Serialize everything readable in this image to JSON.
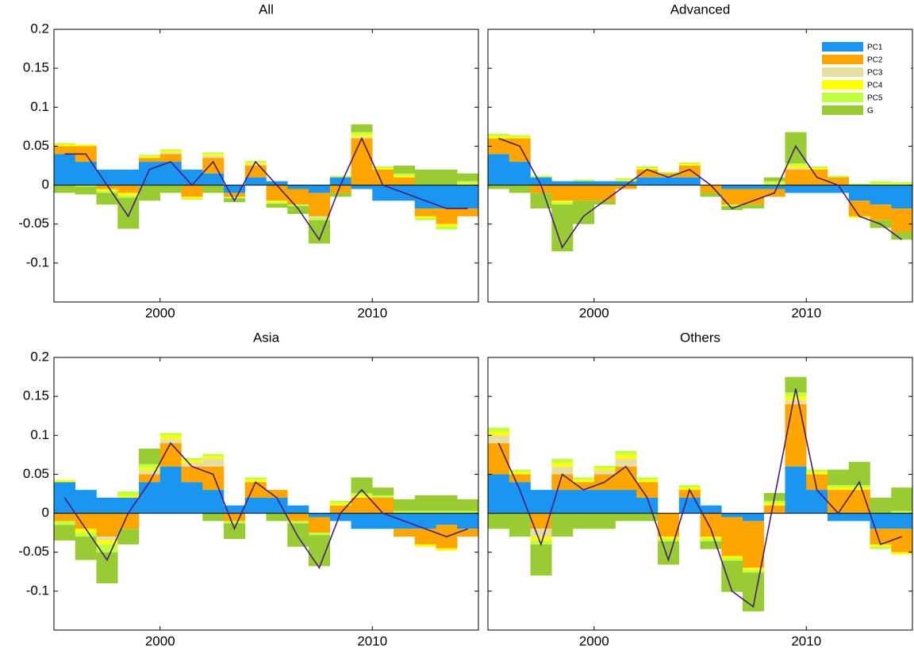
{
  "chart_data": [
    {
      "type": "bar",
      "title": "All",
      "xlim": [
        1995,
        2015
      ],
      "xticks": [
        2000,
        2010
      ],
      "ylim": [
        -0.15,
        0.2
      ],
      "yticks": [
        -0.1,
        -0.05,
        0,
        0.05,
        0.1,
        0.15,
        0.2
      ],
      "show_ytick_labels": true,
      "x": [
        1995.5,
        1996.5,
        1997.5,
        1998.5,
        1999.5,
        2000.5,
        2001.5,
        2002.5,
        2003.5,
        2004.5,
        2005.5,
        2006.5,
        2007.5,
        2008.5,
        2009.5,
        2010.5,
        2011.5,
        2012.5,
        2013.5,
        2014.5
      ],
      "series": [
        {
          "color": "#1a96f0",
          "values": [
            0.04,
            0.03,
            0.02,
            0.02,
            0.03,
            0.03,
            0.02,
            0.015,
            -0.01,
            0.01,
            0.005,
            -0.005,
            -0.01,
            0.01,
            -0.005,
            -0.02,
            -0.02,
            -0.03,
            -0.03,
            -0.03
          ]
        },
        {
          "color": "#ffa500",
          "values": [
            0.01,
            0.02,
            -0.005,
            -0.01,
            0.005,
            0.01,
            -0.015,
            0.02,
            -0.005,
            0.015,
            -0.02,
            -0.02,
            -0.03,
            -0.01,
            0.06,
            0.02,
            0.01,
            -0.01,
            -0.02,
            -0.01
          ]
        },
        {
          "color": "#e6e0a0",
          "values": [
            0,
            0,
            0,
            0,
            0,
            0.002,
            0,
            0.003,
            0,
            0.002,
            0,
            0,
            -0.002,
            0,
            0.002,
            0,
            0,
            0,
            0,
            0
          ]
        },
        {
          "color": "#ffff00",
          "values": [
            0.002,
            0.002,
            -0.002,
            -0.003,
            0.002,
            0.002,
            -0.002,
            0.002,
            0,
            0.002,
            -0.002,
            0,
            0,
            0,
            0.003,
            0.002,
            0.002,
            -0.002,
            -0.003,
            0.002
          ]
        },
        {
          "color": "#bfff3f",
          "values": [
            0.002,
            -0.002,
            -0.003,
            -0.003,
            0.002,
            0.002,
            -0.002,
            0.002,
            -0.002,
            0.002,
            -0.002,
            -0.002,
            -0.003,
            0.002,
            0.003,
            0.002,
            0.003,
            -0.003,
            -0.004,
            0.003
          ]
        },
        {
          "color": "#99cc33",
          "values": [
            -0.01,
            -0.01,
            -0.015,
            -0.04,
            -0.02,
            -0.01,
            0,
            -0.01,
            -0.005,
            0,
            -0.005,
            -0.01,
            -0.03,
            -0.005,
            0.01,
            0,
            0.01,
            0.02,
            0.02,
            0.01
          ]
        }
      ],
      "line": {
        "color": "#4b1a80",
        "values": [
          0.04,
          0.04,
          0.0,
          -0.04,
          0.02,
          0.03,
          0.0,
          0.03,
          -0.02,
          0.03,
          0.0,
          -0.03,
          -0.07,
          0.0,
          0.06,
          0.0,
          -0.01,
          -0.02,
          -0.03,
          -0.03
        ]
      }
    },
    {
      "type": "bar",
      "title": "Advanced",
      "xlim": [
        1995,
        2015
      ],
      "xticks": [
        2000,
        2010
      ],
      "ylim": [
        -0.15,
        0.2
      ],
      "yticks": [
        -0.1,
        -0.05,
        0,
        0.05,
        0.1,
        0.15,
        0.2
      ],
      "show_ytick_labels": false,
      "legend": "upper right",
      "x": [
        1995.5,
        1996.5,
        1997.5,
        1998.5,
        1999.5,
        2000.5,
        2001.5,
        2002.5,
        2003.5,
        2004.5,
        2005.5,
        2006.5,
        2007.5,
        2008.5,
        2009.5,
        2010.5,
        2011.5,
        2012.5,
        2013.5,
        2014.5
      ],
      "series": [
        {
          "name": "PC1",
          "color": "#1a96f0",
          "values": [
            0.04,
            0.03,
            0.01,
            0.005,
            0.005,
            0.005,
            0.005,
            0.01,
            0.01,
            0.01,
            0,
            -0.005,
            -0.005,
            -0.005,
            -0.01,
            -0.01,
            -0.01,
            -0.02,
            -0.025,
            -0.03
          ]
        },
        {
          "name": "PC2",
          "color": "#ffa500",
          "values": [
            0.02,
            0.03,
            -0.01,
            -0.02,
            -0.02,
            -0.02,
            -0.005,
            0.01,
            0.005,
            0.015,
            -0.01,
            -0.02,
            -0.02,
            -0.01,
            0.02,
            0.02,
            0.01,
            -0.02,
            -0.02,
            -0.03
          ]
        },
        {
          "name": "PC3",
          "color": "#e6e0a0",
          "values": [
            0,
            0,
            0,
            0,
            0,
            0,
            0,
            0,
            0,
            0,
            0,
            0,
            0,
            0,
            0.002,
            0,
            0,
            0,
            0,
            0
          ]
        },
        {
          "name": "PC4",
          "color": "#ffff00",
          "values": [
            0.003,
            0.002,
            0,
            -0.002,
            0,
            0,
            0.002,
            0.002,
            0,
            0.002,
            0,
            0,
            0,
            0.002,
            0.003,
            0.002,
            0,
            -0.002,
            0.002,
            0.002
          ]
        },
        {
          "name": "PC5",
          "color": "#bfff3f",
          "values": [
            0.003,
            0.002,
            0.002,
            -0.003,
            0.002,
            0,
            0.002,
            0.002,
            0.002,
            0.002,
            0,
            -0.002,
            0,
            0.003,
            0.003,
            0.002,
            0.002,
            0.002,
            0.003,
            0.002
          ]
        },
        {
          "name": "G",
          "color": "#99cc33",
          "values": [
            -0.005,
            -0.01,
            -0.02,
            -0.06,
            -0.03,
            -0.005,
            0,
            0,
            0,
            0,
            -0.005,
            -0.005,
            -0.005,
            0.005,
            0.04,
            0,
            0,
            0,
            -0.01,
            -0.01
          ]
        }
      ],
      "line": {
        "color": "#4b1a80",
        "values": [
          0.06,
          0.05,
          0.0,
          -0.08,
          -0.04,
          -0.02,
          0.0,
          0.02,
          0.01,
          0.02,
          0.0,
          -0.03,
          -0.02,
          -0.01,
          0.05,
          0.01,
          0.0,
          -0.04,
          -0.05,
          -0.07
        ]
      }
    },
    {
      "type": "bar",
      "title": "Asia",
      "xlim": [
        1995,
        2015
      ],
      "xticks": [
        2000,
        2010
      ],
      "ylim": [
        -0.15,
        0.2
      ],
      "yticks": [
        -0.1,
        -0.05,
        0,
        0.05,
        0.1,
        0.15,
        0.2
      ],
      "show_ytick_labels": true,
      "x": [
        1995.5,
        1996.5,
        1997.5,
        1998.5,
        1999.5,
        2000.5,
        2001.5,
        2002.5,
        2003.5,
        2004.5,
        2005.5,
        2006.5,
        2007.5,
        2008.5,
        2009.5,
        2010.5,
        2011.5,
        2012.5,
        2013.5,
        2014.5
      ],
      "series": [
        {
          "color": "#1a96f0",
          "values": [
            0.04,
            0.03,
            0.02,
            0.02,
            0.04,
            0.06,
            0.04,
            0.03,
            0.01,
            0.02,
            0.02,
            0.01,
            -0.005,
            -0.01,
            -0.02,
            -0.02,
            -0.02,
            -0.02,
            -0.015,
            -0.02
          ]
        },
        {
          "color": "#ffa500",
          "values": [
            -0.01,
            -0.02,
            -0.03,
            -0.02,
            0.01,
            0.03,
            0.02,
            0.03,
            -0.01,
            0.02,
            0.01,
            -0.01,
            -0.02,
            0.01,
            0.02,
            0.02,
            -0.01,
            -0.02,
            -0.03,
            -0.01
          ]
        },
        {
          "color": "#e6e0a0",
          "values": [
            0,
            0,
            -0.005,
            0,
            0.005,
            0.005,
            0.005,
            0.01,
            0,
            0,
            0,
            0,
            0,
            0,
            0,
            0,
            0,
            0,
            0,
            0
          ]
        },
        {
          "color": "#ffff00",
          "values": [
            0.003,
            -0.005,
            -0.005,
            0.003,
            0.003,
            0.005,
            0.003,
            0.003,
            0,
            0.003,
            0,
            0,
            0,
            0.003,
            0.003,
            0,
            0,
            -0.003,
            -0.003,
            0
          ]
        },
        {
          "color": "#bfff3f",
          "values": [
            -0.005,
            -0.005,
            -0.01,
            0.005,
            0.005,
            0.003,
            0.003,
            0.003,
            -0.003,
            0.003,
            0,
            -0.003,
            -0.003,
            0.003,
            0.003,
            0.003,
            0.003,
            0.003,
            0.003,
            0.003
          ]
        },
        {
          "color": "#99cc33",
          "values": [
            -0.02,
            -0.03,
            -0.04,
            -0.02,
            0.02,
            0,
            0,
            -0.01,
            -0.02,
            0,
            -0.01,
            -0.03,
            -0.04,
            0,
            0.02,
            0.01,
            0.015,
            0.02,
            0.02,
            0.015
          ]
        }
      ],
      "line": {
        "color": "#4b1a80",
        "values": [
          0.02,
          -0.02,
          -0.06,
          0.0,
          0.04,
          0.09,
          0.06,
          0.05,
          -0.02,
          0.04,
          0.02,
          -0.03,
          -0.07,
          0.0,
          0.03,
          0.0,
          -0.01,
          -0.02,
          -0.03,
          -0.02
        ]
      }
    },
    {
      "type": "bar",
      "title": "Others",
      "xlim": [
        1995,
        2015
      ],
      "xticks": [
        2000,
        2010
      ],
      "ylim": [
        -0.15,
        0.2
      ],
      "yticks": [
        -0.1,
        -0.05,
        0,
        0.05,
        0.1,
        0.15,
        0.2
      ],
      "show_ytick_labels": false,
      "x": [
        1995.5,
        1996.5,
        1997.5,
        1998.5,
        1999.5,
        2000.5,
        2001.5,
        2002.5,
        2003.5,
        2004.5,
        2005.5,
        2006.5,
        2007.5,
        2008.5,
        2009.5,
        2010.5,
        2011.5,
        2012.5,
        2013.5,
        2014.5
      ],
      "series": [
        {
          "color": "#1a96f0",
          "values": [
            0.05,
            0.04,
            0.03,
            0.03,
            0.03,
            0.03,
            0.03,
            0.02,
            0,
            0.02,
            0.01,
            -0.005,
            -0.01,
            0,
            0.06,
            0.03,
            -0.01,
            -0.01,
            -0.02,
            -0.02
          ]
        },
        {
          "color": "#ffa500",
          "values": [
            0.04,
            0.01,
            -0.02,
            0.02,
            0.01,
            0.02,
            0.03,
            0.02,
            -0.03,
            0.01,
            -0.03,
            -0.05,
            -0.06,
            0.01,
            0.08,
            0.02,
            0.03,
            0.03,
            -0.02,
            -0.03
          ]
        },
        {
          "color": "#e6e0a0",
          "values": [
            0.01,
            0,
            -0.01,
            0.01,
            0,
            0.005,
            0.01,
            0,
            0,
            0,
            0,
            0,
            0,
            0,
            0.005,
            0,
            0,
            0,
            0,
            0
          ]
        },
        {
          "color": "#ffff00",
          "values": [
            0.005,
            0.003,
            -0.005,
            0.005,
            0.003,
            0.003,
            0.005,
            0.003,
            -0.003,
            0.003,
            -0.003,
            -0.003,
            -0.003,
            0.003,
            0.005,
            0.003,
            0.003,
            0.003,
            -0.003,
            -0.003
          ]
        },
        {
          "color": "#bfff3f",
          "values": [
            0.005,
            0.003,
            -0.005,
            0.005,
            0.003,
            0.003,
            0.005,
            0.003,
            -0.003,
            0.003,
            -0.003,
            -0.003,
            -0.003,
            0.003,
            0.005,
            0.003,
            0.003,
            0.003,
            -0.003,
            0.003
          ]
        },
        {
          "color": "#99cc33",
          "values": [
            -0.02,
            -0.03,
            -0.04,
            -0.03,
            -0.02,
            -0.02,
            -0.01,
            -0.01,
            -0.03,
            0,
            -0.01,
            -0.04,
            -0.05,
            0.01,
            0.02,
            0,
            0.02,
            0.03,
            0.02,
            0.03
          ]
        }
      ],
      "line": {
        "color": "#4b1a80",
        "values": [
          0.09,
          0.03,
          -0.04,
          0.05,
          0.03,
          0.04,
          0.06,
          0.02,
          -0.06,
          0.03,
          -0.02,
          -0.1,
          -0.12,
          0.02,
          0.16,
          0.03,
          0.0,
          0.04,
          -0.04,
          -0.03
        ]
      }
    }
  ]
}
